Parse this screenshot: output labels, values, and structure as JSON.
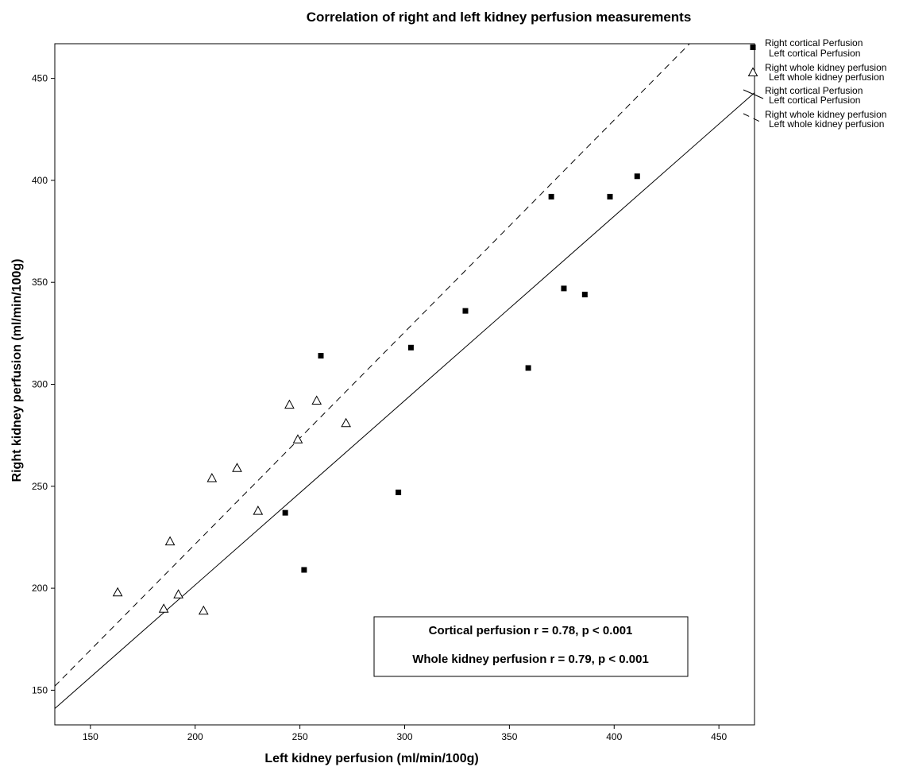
{
  "chart_data": {
    "type": "scatter",
    "title": "Correlation of right and left kidney perfusion measurements",
    "xlabel": "Left kidney perfusion (ml/min/100g)",
    "ylabel": "Right kidney perfusion (ml/min/100g)",
    "xlim": [
      133,
      467
    ],
    "ylim": [
      133,
      467
    ],
    "xticks": [
      150,
      200,
      250,
      300,
      350,
      400,
      450
    ],
    "yticks": [
      150,
      200,
      250,
      300,
      350,
      400,
      450
    ],
    "grid": false,
    "legend_position": "outside-right",
    "series": [
      {
        "name": "Right cortical Perfusion / Left cortical Perfusion",
        "marker": "filled-square",
        "color": "#000000",
        "points": [
          [
            243,
            237
          ],
          [
            252,
            209
          ],
          [
            260,
            314
          ],
          [
            297,
            247
          ],
          [
            303,
            318
          ],
          [
            329,
            336
          ],
          [
            359,
            308
          ],
          [
            370,
            392
          ],
          [
            376,
            347
          ],
          [
            386,
            344
          ],
          [
            398,
            392
          ],
          [
            411,
            402
          ]
        ]
      },
      {
        "name": "Right whole kidney perfusion / Left whole kidney perfusion",
        "marker": "open-triangle",
        "color": "#000000",
        "points": [
          [
            163,
            198
          ],
          [
            185,
            190
          ],
          [
            188,
            223
          ],
          [
            192,
            197
          ],
          [
            204,
            189
          ],
          [
            208,
            254
          ],
          [
            220,
            259
          ],
          [
            230,
            238
          ],
          [
            245,
            290
          ],
          [
            249,
            273
          ],
          [
            258,
            292
          ],
          [
            272,
            281
          ]
        ]
      }
    ],
    "fit_lines": [
      {
        "name": "Right cortical Perfusion / Left cortical Perfusion",
        "style": "solid",
        "points": [
          [
            133,
            141
          ],
          [
            467,
            443
          ]
        ]
      },
      {
        "name": "Right whole kidney perfusion / Left whole kidney perfusion",
        "style": "dashed",
        "points": [
          [
            133,
            152
          ],
          [
            436,
            467
          ]
        ]
      }
    ],
    "legend": [
      {
        "symbol": "filled-square",
        "line1": "Right cortical Perfusion",
        "line2": "Left cortical Perfusion"
      },
      {
        "symbol": "open-triangle",
        "line1": "Right whole kidney perfusion",
        "line2": "Left whole kidney perfusion"
      },
      {
        "symbol": "solid-line",
        "line1": "Right cortical Perfusion",
        "line2": "Left cortical Perfusion"
      },
      {
        "symbol": "dashed-line",
        "line1": "Right whole kidney perfusion",
        "line2": "Left whole kidney perfusion"
      }
    ],
    "annotations": [
      "Cortical perfusion r = 0.78, p < 0.001",
      "Whole kidney perfusion r = 0.79, p < 0.001"
    ]
  }
}
